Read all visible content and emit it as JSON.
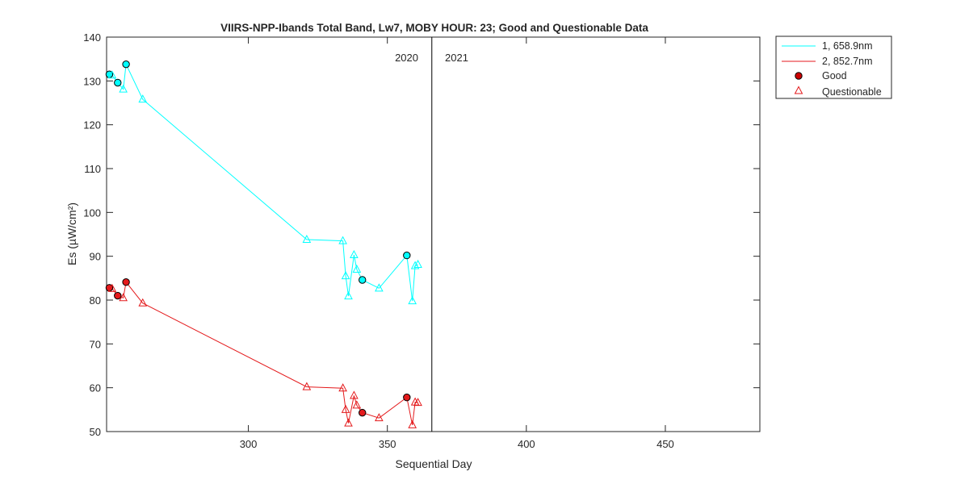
{
  "chart_data": {
    "type": "line",
    "title": "VIIRS-NPP-Ibands Total Band,  Lw7, MOBY HOUR: 23;  Good and Questionable Data",
    "xlabel": "Sequential Day",
    "ylabel": "Es (µW/cm²)",
    "xlim": [
      249,
      484
    ],
    "ylim": [
      50,
      140
    ],
    "xticks": [
      300,
      350,
      400,
      450
    ],
    "xtick_labels": [
      "300",
      "350",
      "400",
      "450"
    ],
    "yticks": [
      50,
      60,
      70,
      80,
      90,
      100,
      110,
      120,
      130,
      140
    ],
    "ytick_labels": [
      "50",
      "60",
      "70",
      "80",
      "90",
      "100",
      "110",
      "120",
      "130",
      "140"
    ],
    "year_divider_x": 366,
    "year_labels": [
      "2020",
      "2021"
    ],
    "legend_position": "outside-top-right",
    "legend": {
      "series1": "1, 658.9nm",
      "series2": "2, 852.7nm",
      "good": "Good",
      "questionable": "Questionable"
    },
    "series": [
      {
        "name": "1, 658.9nm",
        "color": "#00ffff",
        "x": [
          250,
          251,
          253,
          255,
          256,
          262,
          321,
          334,
          335,
          336,
          338,
          339,
          341,
          347,
          357,
          359,
          360,
          361
        ],
        "y": [
          131.5,
          131.3,
          129.6,
          128.1,
          133.8,
          125.8,
          93.8,
          93.5,
          85.5,
          80.9,
          90.3,
          87.0,
          84.6,
          82.7,
          90.2,
          79.8,
          87.8,
          88.1
        ],
        "quality": [
          "good",
          "questionable",
          "good",
          "questionable",
          "good",
          "questionable",
          "questionable",
          "questionable",
          "questionable",
          "questionable",
          "questionable",
          "questionable",
          "good",
          "questionable",
          "good",
          "questionable",
          "questionable",
          "questionable"
        ]
      },
      {
        "name": "2, 852.7nm",
        "color": "#e41a1c",
        "x": [
          250,
          251,
          253,
          255,
          256,
          262,
          321,
          334,
          335,
          336,
          338,
          339,
          341,
          347,
          357,
          359,
          360,
          361
        ],
        "y": [
          82.8,
          82.6,
          81.0,
          80.5,
          84.1,
          79.3,
          60.2,
          59.9,
          55.0,
          51.9,
          58.2,
          56.0,
          54.3,
          53.1,
          57.8,
          51.5,
          56.7,
          56.6
        ],
        "quality": [
          "good",
          "questionable",
          "good",
          "questionable",
          "good",
          "questionable",
          "questionable",
          "questionable",
          "questionable",
          "questionable",
          "questionable",
          "questionable",
          "good",
          "questionable",
          "good",
          "questionable",
          "questionable",
          "questionable"
        ]
      }
    ]
  }
}
